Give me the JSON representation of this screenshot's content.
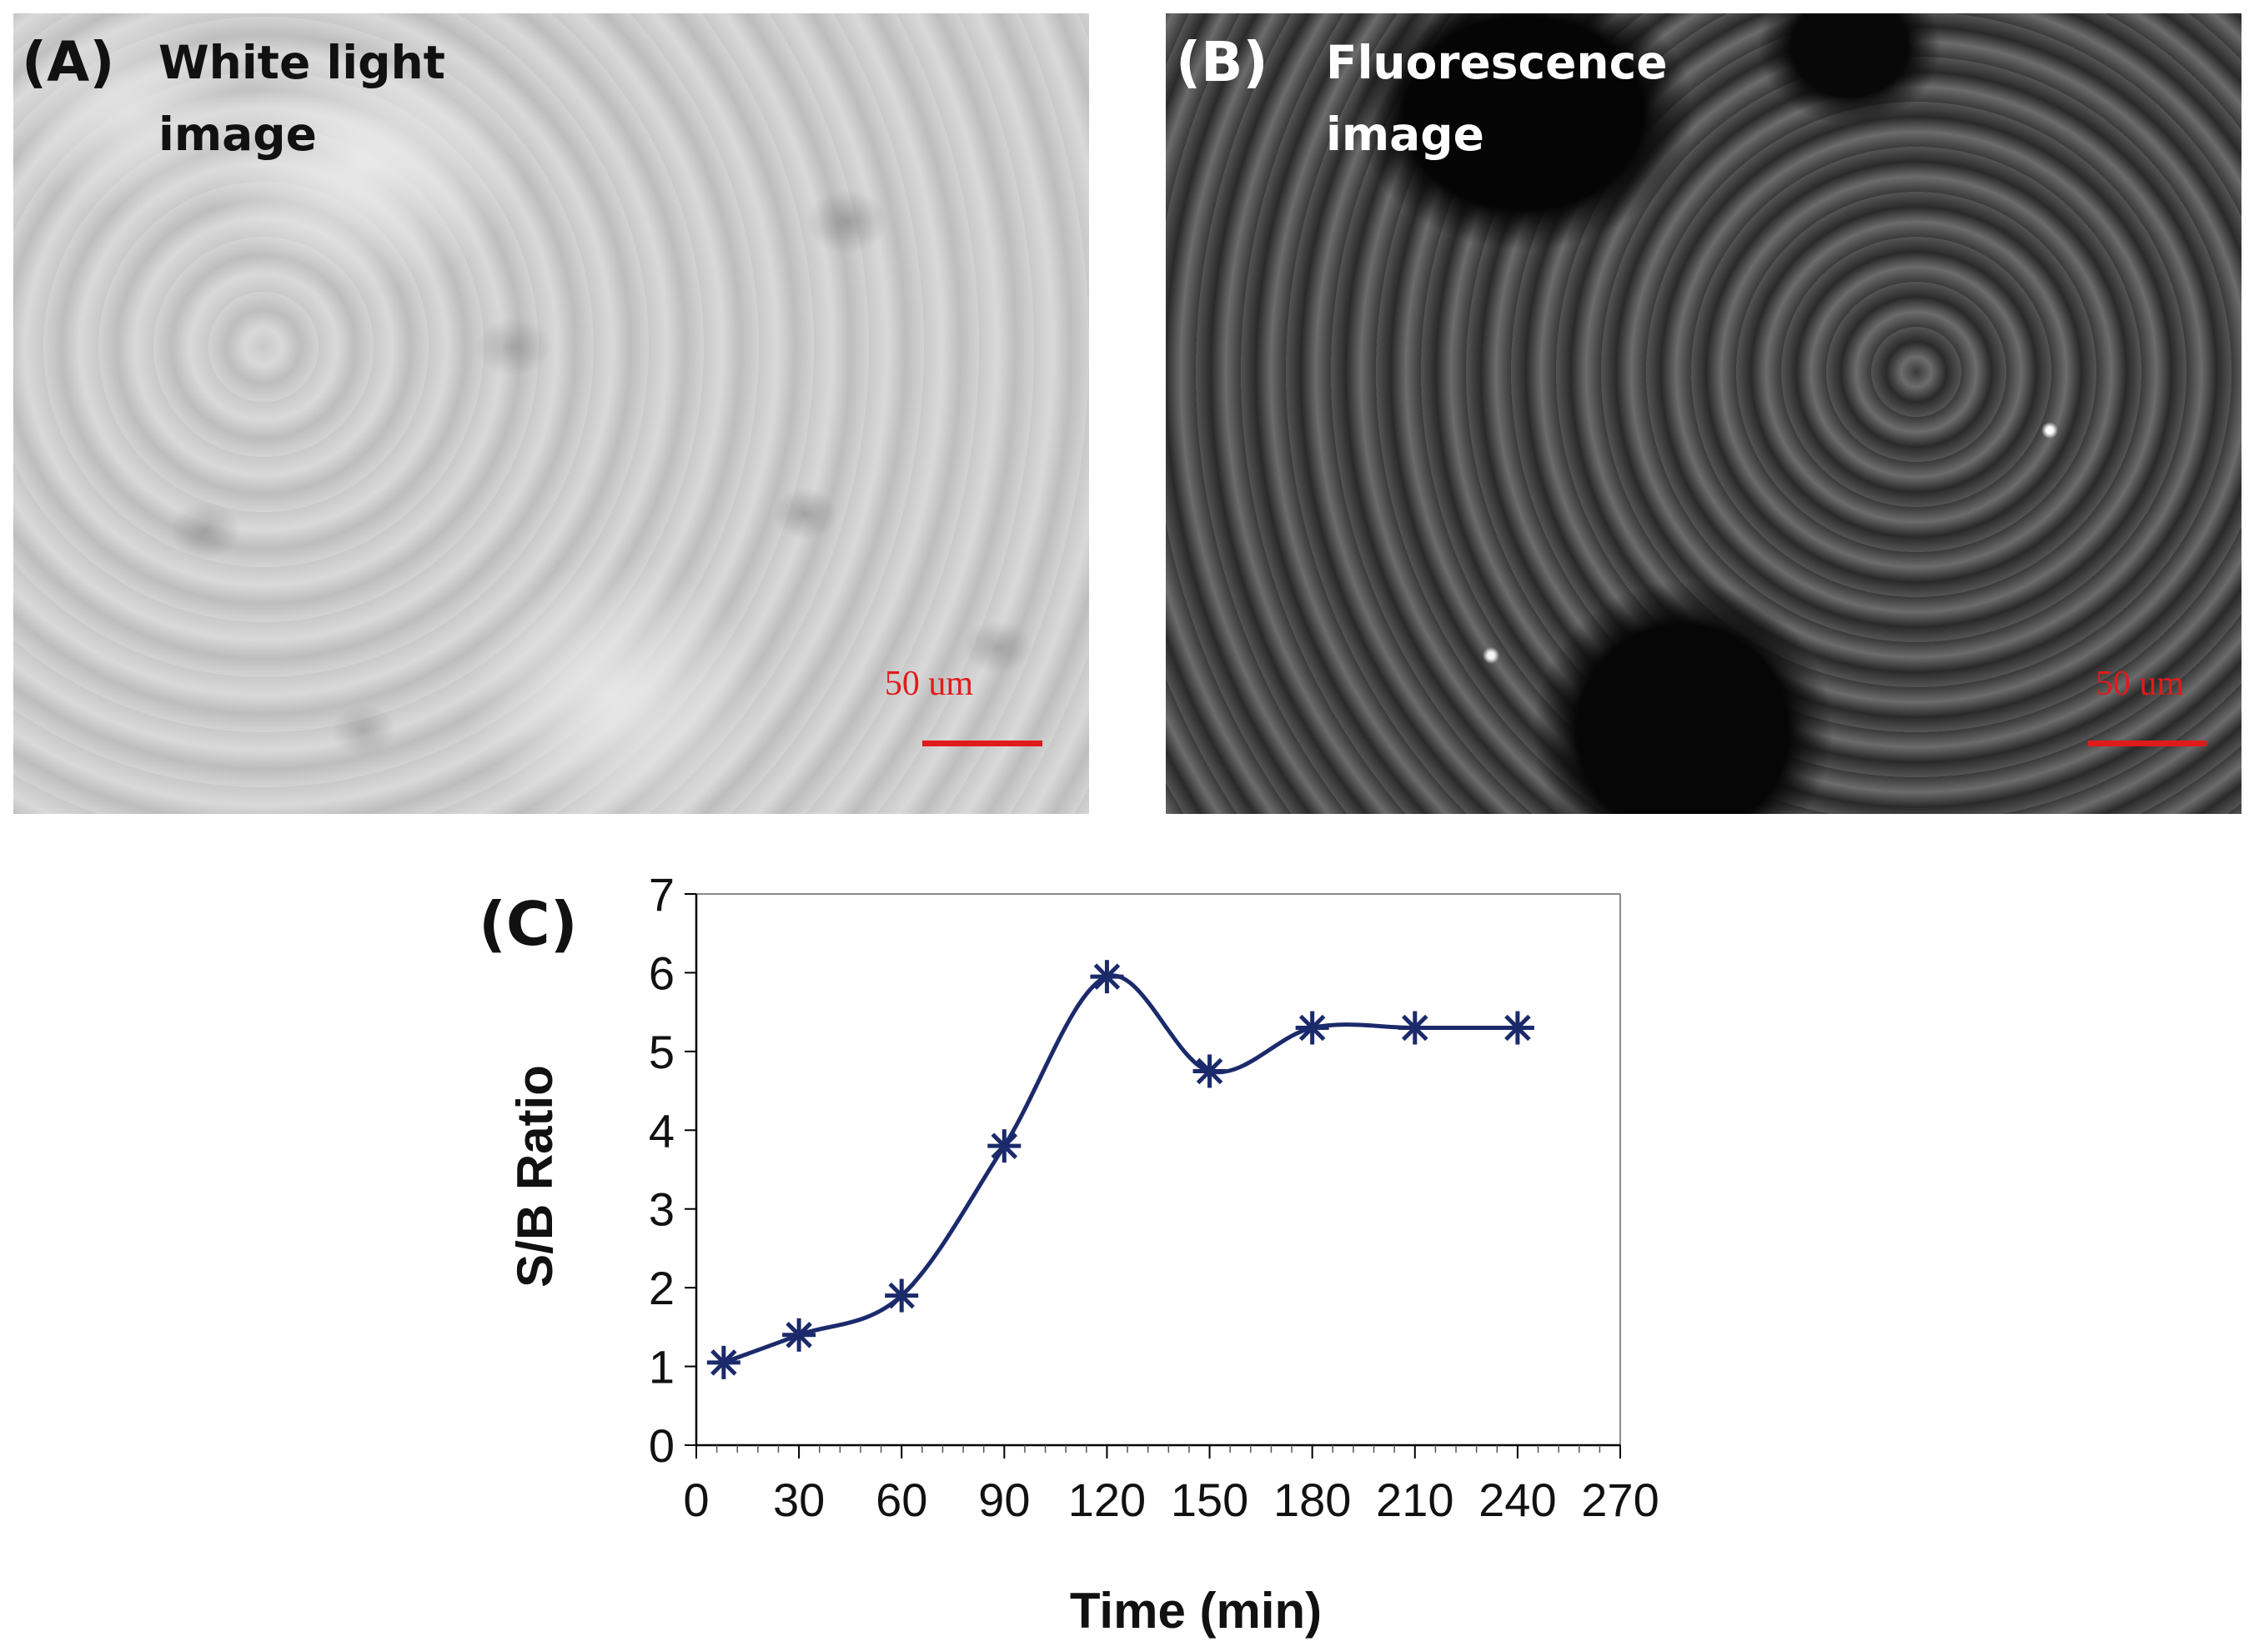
{
  "panels": {
    "a": {
      "label": "(A)",
      "desc_line1": "White light",
      "desc_line2": "image",
      "scale_text": "50 um"
    },
    "b": {
      "label": "(B)",
      "desc_line1": "Fluorescence",
      "desc_line2": "image",
      "scale_text": "50 um"
    },
    "c": {
      "label": "(C)"
    }
  },
  "colors": {
    "line": "#1b2a6b",
    "scale_bar": "#e01b1b",
    "axis": "#000000",
    "frame": "#8a8a8a"
  },
  "chart_data": {
    "type": "line",
    "title": "",
    "xlabel": "Time (min)",
    "ylabel": "S/B Ratio",
    "xlim": [
      0,
      270
    ],
    "ylim": [
      0,
      7
    ],
    "xticks": [
      0,
      30,
      60,
      90,
      120,
      150,
      180,
      210,
      240,
      270
    ],
    "yticks": [
      0,
      1,
      2,
      3,
      4,
      5,
      6,
      7
    ],
    "smoothed": true,
    "marker": "asterisk",
    "grid": false,
    "series": [
      {
        "x": [
          8,
          30,
          60,
          90,
          120,
          150,
          180,
          210,
          240
        ],
        "values": [
          1.05,
          1.4,
          1.9,
          3.8,
          5.95,
          4.75,
          5.3,
          5.3,
          5.3
        ]
      }
    ]
  }
}
